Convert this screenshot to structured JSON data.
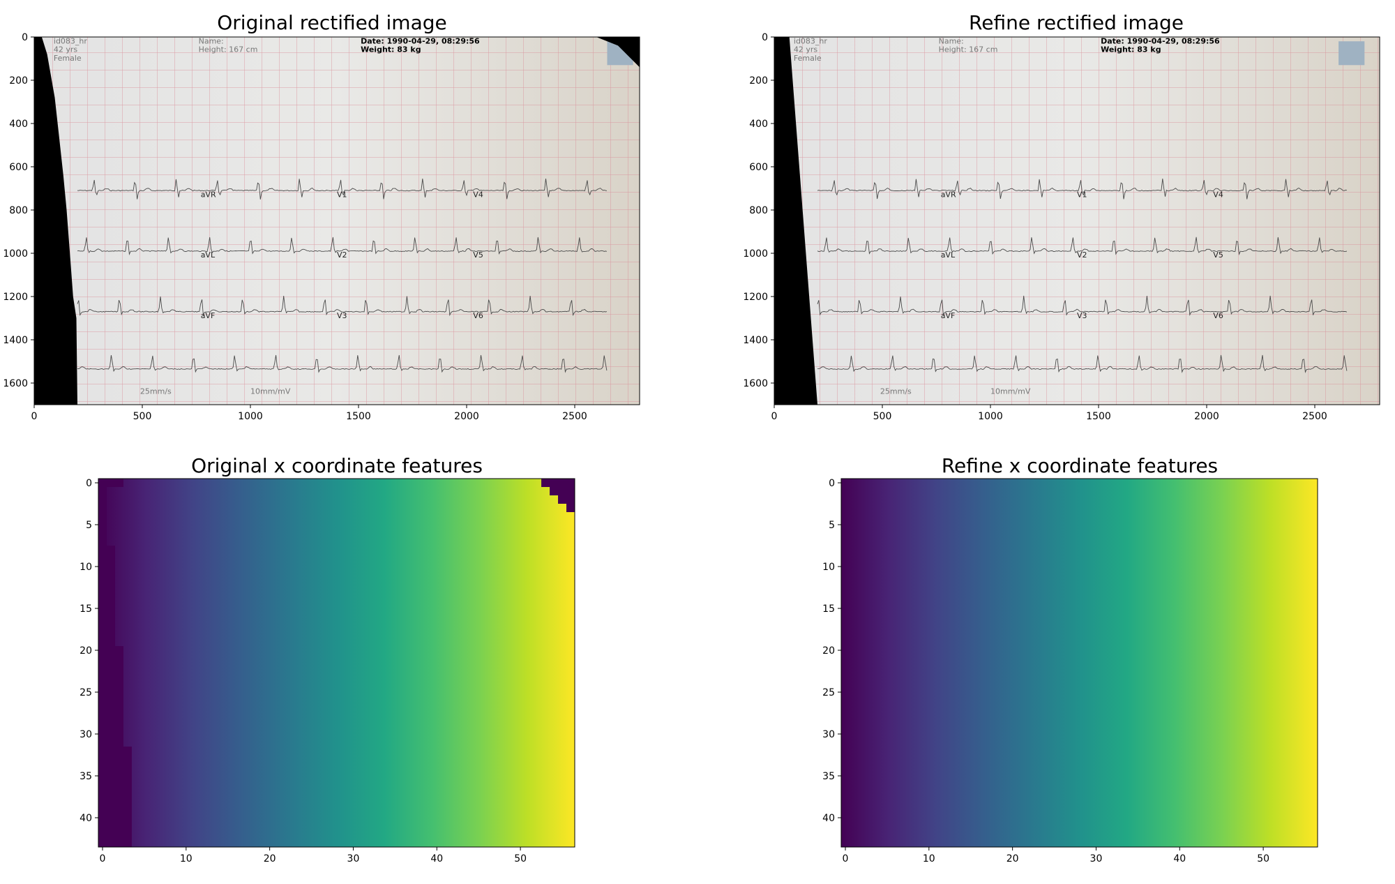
{
  "chart_data": [
    {
      "type": "image",
      "title": "Original rectified image",
      "xlim": [
        0,
        2800
      ],
      "ylim": [
        1700,
        0
      ],
      "x_ticks": [
        "0",
        "500",
        "1000",
        "1500",
        "2000",
        "2500"
      ],
      "y_ticks": [
        "0",
        "200",
        "400",
        "600",
        "800",
        "1000",
        "1200",
        "1400",
        "1600"
      ],
      "x_tick_values": [
        0,
        500,
        1000,
        1500,
        2000,
        2500
      ],
      "y_tick_values": [
        0,
        200,
        400,
        600,
        800,
        1000,
        1200,
        1400,
        1600
      ],
      "ecg": {
        "header": {
          "id_text": "id083_hr",
          "age_text": "42 yrs",
          "sex_text": "Female",
          "name_label": "Name:",
          "height_text": "Height: 167 cm",
          "date_text": "Date: 1990-04-29, 08:29:56",
          "weight_text": "Weight: 83 kg"
        },
        "leads": [
          {
            "name": "aVR",
            "x": 770,
            "y": 740
          },
          {
            "name": "V1",
            "x": 1400,
            "y": 740
          },
          {
            "name": "V4",
            "x": 2030,
            "y": 740
          },
          {
            "name": "aVL",
            "x": 770,
            "y": 1020
          },
          {
            "name": "V2",
            "x": 1400,
            "y": 1020
          },
          {
            "name": "V5",
            "x": 2030,
            "y": 1020
          },
          {
            "name": "aVF",
            "x": 770,
            "y": 1300
          },
          {
            "name": "V3",
            "x": 1400,
            "y": 1300
          },
          {
            "name": "V6",
            "x": 2030,
            "y": 1300
          }
        ],
        "footer": {
          "speed": "25mm/s",
          "gain": "10mm/mV"
        },
        "baselines": [
          710,
          990,
          1270,
          1535
        ],
        "mask_profile": [
          [
            0,
            35
          ],
          [
            80,
            60
          ],
          [
            280,
            95
          ],
          [
            460,
            115
          ],
          [
            640,
            135
          ],
          [
            800,
            150
          ],
          [
            1000,
            165
          ],
          [
            1200,
            180
          ],
          [
            1300,
            195
          ],
          [
            1700,
            200
          ]
        ]
      }
    },
    {
      "type": "image",
      "title": "Refine rectified image",
      "xlim": [
        0,
        2800
      ],
      "ylim": [
        1700,
        0
      ],
      "x_ticks": [
        "0",
        "500",
        "1000",
        "1500",
        "2000",
        "2500"
      ],
      "y_ticks": [
        "0",
        "200",
        "400",
        "600",
        "800",
        "1000",
        "1200",
        "1400",
        "1600"
      ],
      "x_tick_values": [
        0,
        500,
        1000,
        1500,
        2000,
        2500
      ],
      "y_tick_values": [
        0,
        200,
        400,
        600,
        800,
        1000,
        1200,
        1400,
        1600
      ],
      "ecg": {
        "header": {
          "id_text": "id083_hr",
          "age_text": "42 yrs",
          "sex_text": "Female",
          "name_label": "Name:",
          "height_text": "Height: 167 cm",
          "date_text": "Date: 1990-04-29, 08:29:56",
          "weight_text": "Weight: 83 kg"
        },
        "leads": [
          {
            "name": "aVR",
            "x": 770,
            "y": 740
          },
          {
            "name": "V1",
            "x": 1400,
            "y": 740
          },
          {
            "name": "V4",
            "x": 2030,
            "y": 740
          },
          {
            "name": "aVL",
            "x": 770,
            "y": 1020
          },
          {
            "name": "V2",
            "x": 1400,
            "y": 1020
          },
          {
            "name": "V5",
            "x": 2030,
            "y": 1020
          },
          {
            "name": "aVF",
            "x": 770,
            "y": 1300
          },
          {
            "name": "V3",
            "x": 1400,
            "y": 1300
          },
          {
            "name": "V6",
            "x": 2030,
            "y": 1300
          }
        ],
        "footer": {
          "speed": "25mm/s",
          "gain": "10mm/mV"
        },
        "baselines": [
          710,
          990,
          1270,
          1535
        ],
        "mask_profile": [
          [
            0,
            70
          ],
          [
            1700,
            200
          ]
        ]
      }
    },
    {
      "type": "heatmap",
      "title": "Original x coordinate features",
      "colormap": "viridis",
      "rows": 44,
      "cols": 57,
      "xlim": [
        -0.5,
        56.5
      ],
      "ylim": [
        43.5,
        -0.5
      ],
      "x_ticks": [
        "0",
        "10",
        "20",
        "30",
        "40",
        "50"
      ],
      "y_ticks": [
        "0",
        "5",
        "10",
        "15",
        "20",
        "25",
        "30",
        "35",
        "40"
      ],
      "x_tick_values": [
        0,
        10,
        20,
        30,
        40,
        50
      ],
      "y_tick_values": [
        0,
        5,
        10,
        15,
        20,
        25,
        30,
        35,
        40
      ],
      "left_mask_cols_by_row": [
        [
          0,
          0,
          3
        ],
        [
          1,
          7,
          1
        ],
        [
          8,
          19,
          2
        ],
        [
          20,
          31,
          3
        ],
        [
          32,
          43,
          4
        ]
      ],
      "right_mask_start_by_row": [
        [
          0,
          0,
          53
        ],
        [
          1,
          1,
          54
        ],
        [
          2,
          2,
          55
        ],
        [
          3,
          3,
          56
        ]
      ]
    },
    {
      "type": "heatmap",
      "title": "Refine x coordinate features",
      "colormap": "viridis",
      "rows": 44,
      "cols": 57,
      "xlim": [
        -0.5,
        56.5
      ],
      "ylim": [
        43.5,
        -0.5
      ],
      "x_ticks": [
        "0",
        "10",
        "20",
        "30",
        "40",
        "50"
      ],
      "y_ticks": [
        "0",
        "5",
        "10",
        "15",
        "20",
        "25",
        "30",
        "35",
        "40"
      ],
      "x_tick_values": [
        0,
        10,
        20,
        30,
        40,
        50
      ],
      "y_tick_values": [
        0,
        5,
        10,
        15,
        20,
        25,
        30,
        35,
        40
      ],
      "left_mask_cols_by_row": [],
      "right_mask_start_by_row": []
    }
  ]
}
